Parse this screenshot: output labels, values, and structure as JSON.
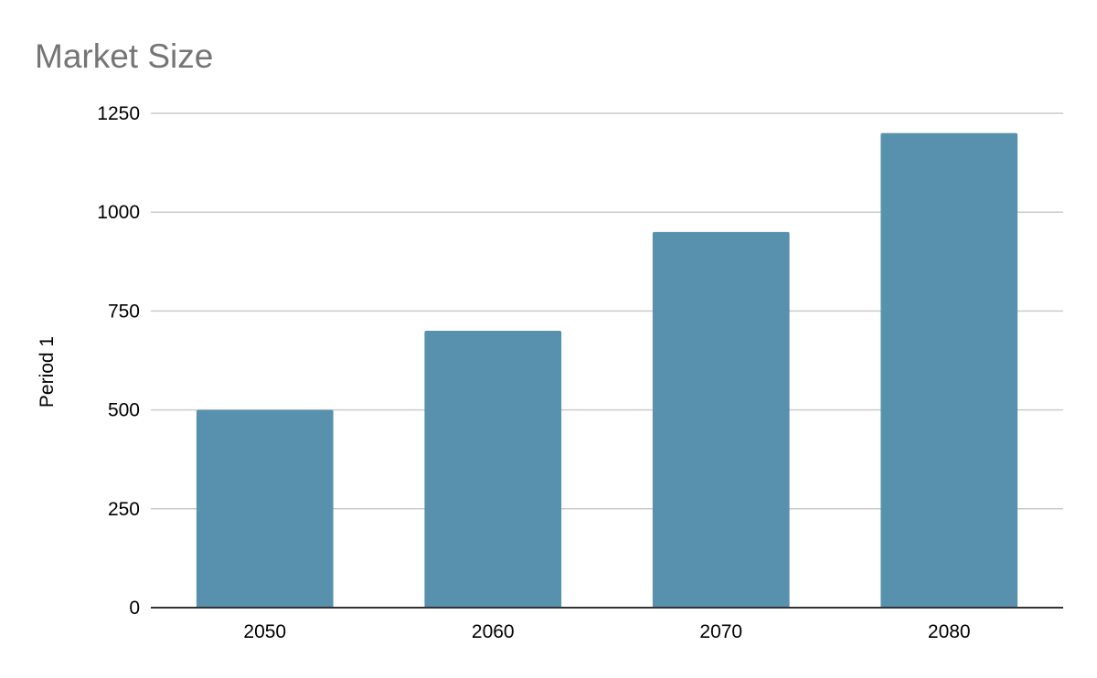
{
  "chart_data": {
    "type": "bar",
    "title": "Market Size",
    "xlabel": "",
    "ylabel": "Period 1",
    "categories": [
      "2050",
      "2060",
      "2070",
      "2080"
    ],
    "series": [
      {
        "values": [
          500,
          700,
          950,
          1200
        ],
        "color": "#5891ad"
      }
    ],
    "ylim": [
      0,
      1250
    ],
    "yticks": [
      0,
      250,
      500,
      750,
      1000,
      1250
    ],
    "grid": true,
    "legend": "none"
  }
}
